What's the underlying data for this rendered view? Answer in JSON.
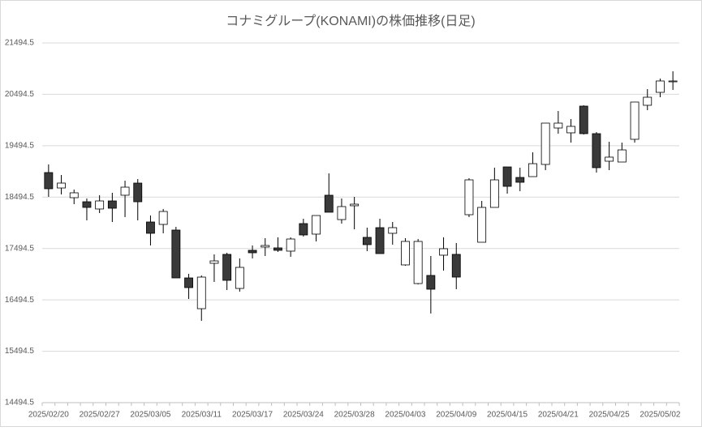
{
  "chart_data": {
    "type": "candlestick",
    "title": "コナミグループ(KONAMI)の株価推移(日足)",
    "categories": [
      "2025/02/20",
      null,
      null,
      null,
      "2025/02/27",
      null,
      null,
      null,
      "2025/03/05",
      null,
      null,
      null,
      "2025/03/11",
      null,
      null,
      null,
      "2025/03/17",
      null,
      null,
      null,
      "2025/03/24",
      null,
      null,
      null,
      "2025/03/28",
      null,
      null,
      null,
      "2025/04/03",
      null,
      null,
      null,
      "2025/04/09",
      null,
      null,
      null,
      "2025/04/15",
      null,
      null,
      null,
      "2025/04/21",
      null,
      null,
      null,
      "2025/04/25",
      null,
      null,
      null,
      "2025/05/02",
      null
    ],
    "open": [
      18972,
      18672,
      18483,
      18404,
      18263,
      18420,
      18531,
      18767,
      18010,
      17963,
      17853,
      16922,
      16323,
      17206,
      17380,
      16717,
      17459,
      17522,
      17506,
      17443,
      17979,
      17774,
      18531,
      18057,
      18326,
      17711,
      17900,
      17790,
      17175,
      16812,
      16970,
      17364,
      17380,
      18152,
      17616,
      18294,
      19082,
      18877,
      18893,
      19130,
      19839,
      19745,
      20265,
      19729,
      19193,
      19177,
      19619,
      20281,
      20533,
      20738
    ],
    "high": [
      19130,
      18925,
      18641,
      18468,
      18531,
      18578,
      18814,
      18846,
      18136,
      18263,
      17916,
      17001,
      16970,
      17380,
      17411,
      17301,
      17553,
      17695,
      17711,
      17711,
      18073,
      18136,
      18956,
      18468,
      18499,
      17900,
      18073,
      18010,
      17695,
      17679,
      17348,
      17711,
      17601,
      18862,
      18420,
      19067,
      19082,
      19067,
      19366,
      19934,
      20170,
      20013,
      20281,
      19760,
      19571,
      19555,
      20344,
      20596,
      20801,
      20943
    ],
    "low": [
      18499,
      18546,
      18357,
      18042,
      18184,
      18010,
      18105,
      18042,
      17553,
      17790,
      16922,
      16512,
      16087,
      16844,
      16686,
      16654,
      17301,
      17348,
      17427,
      17332,
      17727,
      17632,
      18200,
      17979,
      17868,
      17443,
      17395,
      17569,
      17159,
      16796,
      16229,
      17064,
      16702,
      18105,
      17616,
      18294,
      18562,
      18609,
      18893,
      19019,
      19729,
      19555,
      19713,
      18972,
      19019,
      19177,
      19555,
      20186,
      20438,
      20580
    ],
    "close": [
      18657,
      18767,
      18578,
      18294,
      18420,
      18278,
      18688,
      18404,
      17790,
      18215,
      16922,
      16733,
      16938,
      17253,
      16875,
      17127,
      17411,
      17553,
      17459,
      17679,
      17758,
      18136,
      18200,
      18310,
      18357,
      17569,
      17395,
      17900,
      17632,
      17632,
      16702,
      17490,
      16938,
      18830,
      18294,
      18830,
      18704,
      18783,
      19145,
      19934,
      19934,
      19871,
      19729,
      19067,
      19272,
      19413,
      20344,
      20438,
      20754,
      20754
    ],
    "up_color": "#ffffff",
    "down_color": "#3a3a3a",
    "line_color": "#000000",
    "ylim": [
      14494.5,
      21494.5
    ],
    "yticks": [
      14494.5,
      15494.5,
      16494.5,
      17494.5,
      18494.5,
      19494.5,
      20494.5,
      21494.5
    ],
    "grid": true
  }
}
